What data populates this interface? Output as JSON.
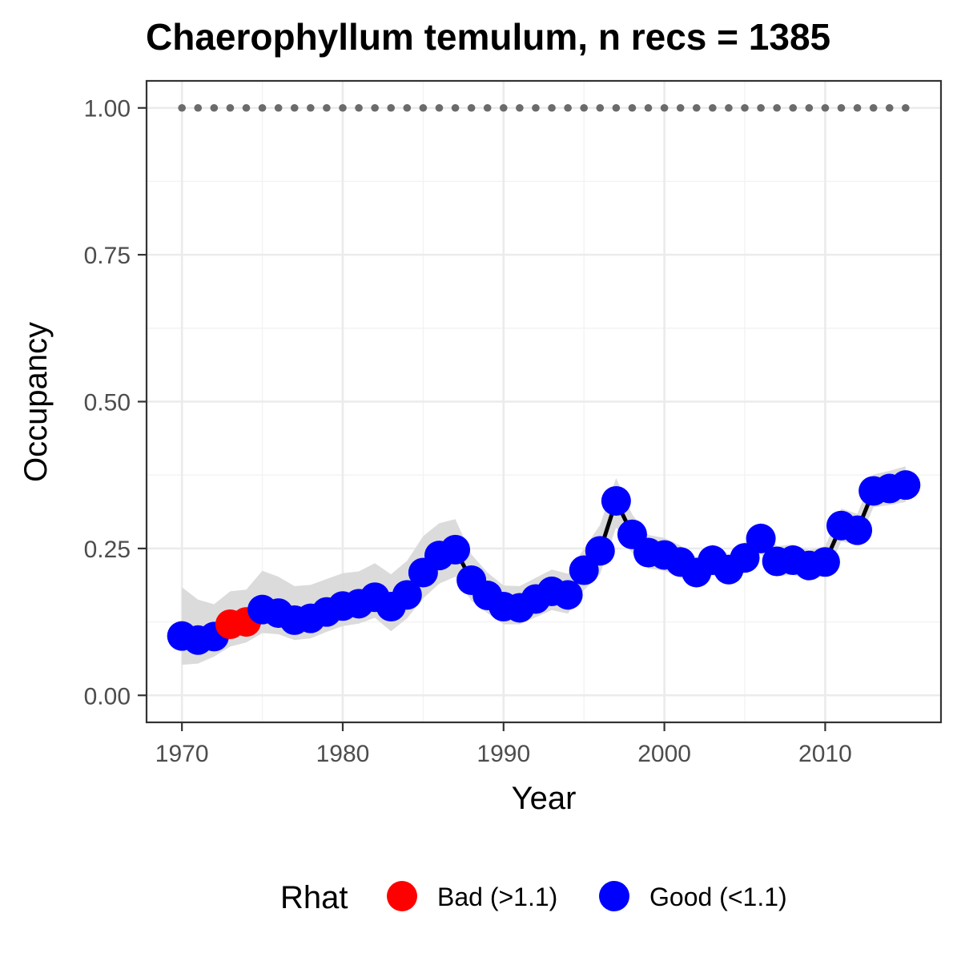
{
  "chart_data": {
    "type": "line",
    "title": "Chaerophyllum temulum, n recs = 1385",
    "xlabel": "Year",
    "ylabel": "Occupancy",
    "xlim": [
      1967.8,
      2017.2
    ],
    "ylim": [
      -0.046,
      1.046
    ],
    "x_ticks": [
      1970,
      1980,
      1990,
      2000,
      2010
    ],
    "x_tick_labels": [
      "1970",
      "1980",
      "1990",
      "2000",
      "2010"
    ],
    "y_ticks": [
      0,
      0.25,
      0.5,
      0.75,
      1.0
    ],
    "y_tick_labels": [
      "0.00",
      "0.25",
      "0.50",
      "0.75",
      "1.00"
    ],
    "grid": true,
    "legend": {
      "title": "Rhat",
      "position": "bottom",
      "entries": [
        {
          "label": "Bad (>1.1)",
          "color": "#ff0000"
        },
        {
          "label": "Good (<1.1)",
          "color": "#0000ff"
        }
      ]
    },
    "colors": {
      "bad": "#ff0000",
      "good": "#0000ff",
      "line": "#000000",
      "ribbon": "#d9d9d9",
      "reference": "#6b6b6b"
    },
    "series": [
      {
        "x": [
          1970,
          1971,
          1972,
          1973,
          1974,
          1975,
          1976,
          1977,
          1978,
          1979,
          1980,
          1981,
          1982,
          1983,
          1984,
          1985,
          1986,
          1987,
          1988,
          1989,
          1990,
          1991,
          1992,
          1993,
          1994,
          1995,
          1996,
          1997,
          1998,
          1999,
          2000,
          2001,
          2002,
          2003,
          2004,
          2005,
          2006,
          2007,
          2008,
          2009,
          2010,
          2011,
          2012,
          2013,
          2014,
          2015
        ],
        "y": [
          0.101,
          0.094,
          0.1,
          0.121,
          0.125,
          0.146,
          0.14,
          0.128,
          0.131,
          0.142,
          0.152,
          0.156,
          0.167,
          0.151,
          0.171,
          0.209,
          0.238,
          0.248,
          0.196,
          0.17,
          0.151,
          0.149,
          0.164,
          0.177,
          0.171,
          0.213,
          0.246,
          0.331,
          0.274,
          0.243,
          0.239,
          0.227,
          0.209,
          0.23,
          0.214,
          0.234,
          0.267,
          0.228,
          0.23,
          0.221,
          0.227,
          0.289,
          0.281,
          0.348,
          0.352,
          0.358
        ],
        "lower": [
          0.052,
          0.054,
          0.066,
          0.083,
          0.09,
          0.106,
          0.104,
          0.094,
          0.097,
          0.108,
          0.118,
          0.122,
          0.132,
          0.109,
          0.131,
          0.165,
          0.19,
          0.202,
          0.161,
          0.14,
          0.121,
          0.121,
          0.133,
          0.145,
          0.139,
          0.179,
          0.206,
          0.286,
          0.242,
          0.216,
          0.212,
          0.201,
          0.185,
          0.205,
          0.19,
          0.209,
          0.241,
          0.203,
          0.205,
          0.197,
          0.203,
          0.262,
          0.256,
          0.32,
          0.324,
          0.329
        ],
        "upper": [
          0.184,
          0.163,
          0.155,
          0.177,
          0.18,
          0.212,
          0.202,
          0.186,
          0.188,
          0.198,
          0.208,
          0.211,
          0.225,
          0.206,
          0.229,
          0.271,
          0.293,
          0.3,
          0.24,
          0.209,
          0.187,
          0.186,
          0.2,
          0.214,
          0.207,
          0.25,
          0.29,
          0.37,
          0.308,
          0.273,
          0.268,
          0.255,
          0.235,
          0.257,
          0.24,
          0.26,
          0.294,
          0.254,
          0.257,
          0.247,
          0.254,
          0.318,
          0.309,
          0.376,
          0.382,
          0.39
        ],
        "rhat_status": [
          "good",
          "good",
          "good",
          "bad",
          "bad",
          "good",
          "good",
          "good",
          "good",
          "good",
          "good",
          "good",
          "good",
          "good",
          "good",
          "good",
          "good",
          "good",
          "good",
          "good",
          "good",
          "good",
          "good",
          "good",
          "good",
          "good",
          "good",
          "good",
          "good",
          "good",
          "good",
          "good",
          "good",
          "good",
          "good",
          "good",
          "good",
          "good",
          "good",
          "good",
          "good",
          "good",
          "good",
          "good",
          "good",
          "good"
        ]
      }
    ],
    "reference_line_y": 1.0
  }
}
